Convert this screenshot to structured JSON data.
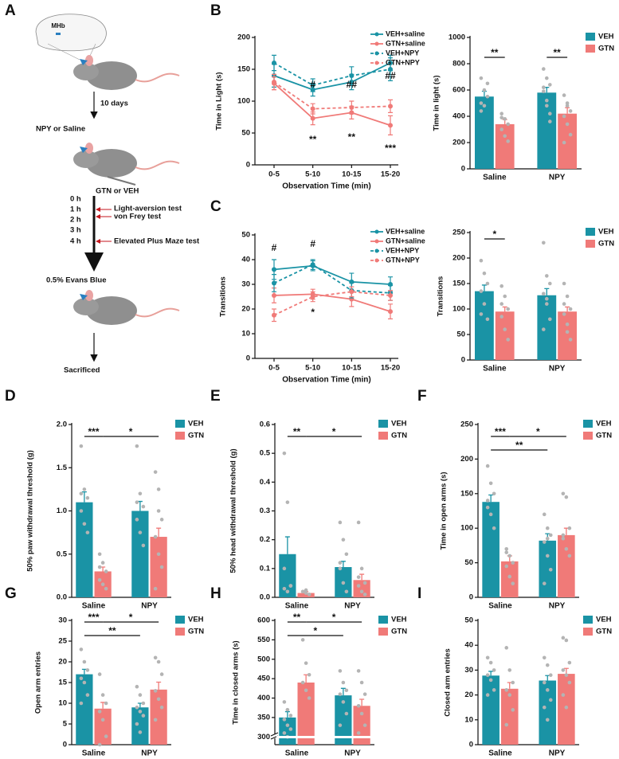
{
  "panels": [
    "A",
    "B",
    "C",
    "D",
    "E",
    "F",
    "G",
    "H",
    "I"
  ],
  "diagram": {
    "brain_label": "MHb",
    "step1": "10 days",
    "injection": "NPY or Saline",
    "treatment": "GTN or VEH",
    "times": [
      "0 h",
      "1 h",
      "2 h",
      "3 h",
      "4 h"
    ],
    "tests": [
      "Light-aversion test",
      "von Frey test",
      "Elevated Plus Maze test"
    ],
    "stain": "0.5% Evans Blue",
    "end": "Sacrificed"
  },
  "chart_data": [
    {
      "type": "line",
      "y_label": "Time in Light (s)",
      "x_label": "Observation Time (min)",
      "categories": [
        "0-5",
        "5-10",
        "10-15",
        "15-20"
      ],
      "ylim": [
        0,
        200
      ],
      "yticks": [
        0,
        50,
        100,
        150,
        200
      ],
      "series": [
        {
          "name": "VEH+saline",
          "color": "#1a93a5",
          "line_style": "solid",
          "values": [
            140,
            118,
            130,
            160
          ],
          "errors": [
            18,
            10,
            12,
            12
          ]
        },
        {
          "name": "GTN+saline",
          "color": "#f07a78",
          "line_style": "solid",
          "values": [
            128,
            73,
            82,
            62
          ],
          "errors": [
            10,
            10,
            10,
            15
          ]
        },
        {
          "name": "VEH+NPY",
          "color": "#1a93a5",
          "line_style": "dashed",
          "values": [
            160,
            125,
            140,
            150
          ],
          "errors": [
            12,
            10,
            14,
            18
          ]
        },
        {
          "name": "GTN+NPY",
          "color": "#f07a78",
          "line_style": "dashed",
          "values": [
            130,
            88,
            90,
            92
          ],
          "errors": [
            12,
            8,
            10,
            10
          ]
        }
      ],
      "annotations": [
        "#",
        "##",
        "##",
        "**",
        "**",
        "***"
      ]
    },
    {
      "type": "bar",
      "y_label": "Time in light (s)",
      "categories": [
        "Saline",
        "NPY"
      ],
      "ylim": [
        0,
        1000
      ],
      "yticks": [
        0,
        200,
        400,
        600,
        800,
        1000
      ],
      "series": [
        {
          "name": "VEH",
          "color": "#1a93a5",
          "values": [
            550,
            580
          ],
          "errors": [
            40,
            40
          ],
          "points": [
            [
              690,
              600,
              550,
              500,
              480,
              650,
              440
            ],
            [
              760,
              690,
              640,
              590,
              480,
              420,
              620,
              520,
              360
            ]
          ]
        },
        {
          "name": "GTN",
          "color": "#f07a78",
          "values": [
            340,
            420
          ],
          "errors": [
            35,
            45
          ],
          "points": [
            [
              420,
              380,
              340,
              300,
              250,
              210,
              390
            ],
            [
              560,
              480,
              440,
              400,
              340,
              260,
              200,
              500
            ]
          ]
        }
      ],
      "annotations": [
        "**",
        "**"
      ]
    },
    {
      "type": "line",
      "y_label": "Transitions",
      "x_label": "Observation Time (min)",
      "categories": [
        "0-5",
        "5-10",
        "10-15",
        "15-20"
      ],
      "ylim": [
        0,
        50
      ],
      "yticks": [
        0,
        10,
        20,
        30,
        40,
        50
      ],
      "series": [
        {
          "name": "VEH+saline",
          "color": "#1a93a5",
          "line_style": "solid",
          "values": [
            36,
            37.5,
            31,
            30
          ],
          "errors": [
            4,
            2,
            3.5,
            3
          ]
        },
        {
          "name": "GTN+saline",
          "color": "#f07a78",
          "line_style": "solid",
          "values": [
            25.5,
            26,
            24,
            19
          ],
          "errors": [
            3,
            2,
            3,
            3
          ]
        },
        {
          "name": "VEH+NPY",
          "color": "#1a93a5",
          "line_style": "dashed",
          "values": [
            30.5,
            38,
            27.5,
            26.5
          ],
          "errors": [
            3.5,
            2,
            3,
            3
          ]
        },
        {
          "name": "GTN+NPY",
          "color": "#f07a78",
          "line_style": "dashed",
          "values": [
            17.5,
            25,
            27,
            25.5
          ],
          "errors": [
            2.5,
            2,
            2,
            2
          ]
        }
      ],
      "annotations": [
        "#",
        "#",
        "*"
      ]
    },
    {
      "type": "bar",
      "y_label": "Transitions",
      "categories": [
        "Saline",
        "NPY"
      ],
      "ylim": [
        0,
        250
      ],
      "yticks": [
        0,
        50,
        100,
        150,
        200,
        250
      ],
      "series": [
        {
          "name": "VEH",
          "color": "#1a93a5",
          "values": [
            135,
            127
          ],
          "errors": [
            12,
            13
          ],
          "points": [
            [
              195,
              170,
              150,
              135,
              110,
              80,
              90
            ],
            [
              230,
              165,
              150,
              130,
              110,
              80,
              60,
              120
            ]
          ]
        },
        {
          "name": "GTN",
          "color": "#f07a78",
          "values": [
            95,
            95
          ],
          "errors": [
            9,
            9
          ],
          "points": [
            [
              145,
              125,
              100,
              85,
              60,
              40,
              110
            ],
            [
              150,
              125,
              100,
              90,
              70,
              40,
              110,
              55
            ]
          ]
        }
      ],
      "annotations": [
        "*"
      ]
    },
    {
      "type": "bar",
      "y_label": "50% paw withdrawal threshold (g)",
      "categories": [
        "Saline",
        "NPY"
      ],
      "ylim": [
        0,
        2
      ],
      "yticks": [
        {
          "value": 0,
          "label": "0.0"
        },
        0.5,
        {
          "value": 1,
          "label": "1.0"
        },
        1.5,
        {
          "value": 2,
          "label": "2.0"
        }
      ],
      "series": [
        {
          "name": "VEH",
          "color": "#1a93a5",
          "values": [
            1.1,
            1.0
          ],
          "errors": [
            0.12,
            0.11
          ],
          "points": [
            [
              1.75,
              1.25,
              1.15,
              1.0,
              0.85,
              0.75,
              1.2
            ],
            [
              1.75,
              1.2,
              1.05,
              0.9,
              0.75,
              0.6,
              1.1
            ]
          ]
        },
        {
          "name": "GTN",
          "color": "#f07a78",
          "values": [
            0.3,
            0.7
          ],
          "errors": [
            0.05,
            0.1
          ],
          "points": [
            [
              0.5,
              0.4,
              0.3,
              0.2,
              0.15,
              0.1,
              0.35
            ],
            [
              1.45,
              1.25,
              0.9,
              0.7,
              0.5,
              0.35,
              0.1,
              1.0
            ]
          ]
        }
      ],
      "annotations": [
        "***",
        "*"
      ]
    },
    {
      "type": "bar",
      "y_label": "50% head withdrawal threshold (g)",
      "categories": [
        "Saline",
        "NPY"
      ],
      "ylim": [
        0,
        0.6
      ],
      "yticks": [
        {
          "value": 0,
          "label": "0.0"
        },
        0.1,
        0.2,
        0.3,
        0.4,
        0.5,
        0.6
      ],
      "series": [
        {
          "name": "VEH",
          "color": "#1a93a5",
          "values": [
            0.15,
            0.105
          ],
          "errors": [
            0.06,
            0.02
          ],
          "points": [
            [
              0.5,
              0.33,
              0.04,
              0.03,
              0.02,
              0.04,
              0.1
            ],
            [
              0.26,
              0.2,
              0.15,
              0.1,
              0.05,
              0.02,
              0.12
            ]
          ]
        },
        {
          "name": "GTN",
          "color": "#f07a78",
          "values": [
            0.015,
            0.06
          ],
          "errors": [
            0.005,
            0.02
          ],
          "points": [
            [
              0.02,
              0.015,
              0.01,
              0.02,
              0.025,
              0.01
            ],
            [
              0.26,
              0.1,
              0.05,
              0.04,
              0.02,
              0.01,
              0.07
            ]
          ]
        }
      ],
      "annotations": [
        "**",
        "*"
      ]
    },
    {
      "type": "bar",
      "y_label": "Time in open arms (s)",
      "categories": [
        "Saline",
        "NPY"
      ],
      "ylim": [
        0,
        250
      ],
      "yticks": [
        0,
        50,
        100,
        150,
        200,
        250
      ],
      "series": [
        {
          "name": "VEH",
          "color": "#1a93a5",
          "values": [
            138,
            82
          ],
          "errors": [
            10,
            10
          ],
          "points": [
            [
              190,
              165,
              150,
              140,
              120,
              100,
              130
            ],
            [
              120,
              100,
              90,
              80,
              60,
              40,
              20,
              85
            ]
          ]
        },
        {
          "name": "GTN",
          "color": "#f07a78",
          "values": [
            52,
            90
          ],
          "errors": [
            8,
            10
          ],
          "points": [
            [
              70,
              60,
              50,
              45,
              30,
              20,
              65
            ],
            [
              150,
              145,
              100,
              90,
              70,
              60,
              85
            ]
          ]
        }
      ],
      "annotations": [
        "***",
        "*",
        "**"
      ]
    },
    {
      "type": "bar",
      "y_label": "Open arm entries",
      "categories": [
        "Saline",
        "NPY"
      ],
      "ylim": [
        0,
        30
      ],
      "yticks": [
        0,
        5,
        10,
        15,
        20,
        25,
        30
      ],
      "series": [
        {
          "name": "VEH",
          "color": "#1a93a5",
          "values": [
            17,
            9
          ],
          "errors": [
            1.2,
            1
          ],
          "points": [
            [
              23,
              20,
              18,
              16,
              15,
              12,
              10
            ],
            [
              14,
              12,
              10,
              9,
              8,
              7,
              5,
              3
            ]
          ]
        },
        {
          "name": "GTN",
          "color": "#f07a78",
          "values": [
            8.7,
            13.3
          ],
          "errors": [
            1.5,
            1.8
          ],
          "points": [
            [
              17,
              12,
              10,
              8,
              6,
              2,
              0
            ],
            [
              21,
              20,
              17,
              13,
              11,
              9,
              6
            ]
          ]
        }
      ],
      "annotations": [
        "***",
        "*",
        "**"
      ]
    },
    {
      "type": "bar",
      "y_label": "Time in closed arms (s)",
      "categories": [
        "Saline",
        "NPY"
      ],
      "ylim": [
        280,
        600
      ],
      "yticks": [
        300,
        350,
        400,
        450,
        500,
        550,
        600
      ],
      "series": [
        {
          "name": "VEH",
          "color": "#1a93a5",
          "values": [
            350,
            407
          ],
          "errors": [
            15,
            18
          ],
          "points": [
            [
              390,
              370,
              355,
              345,
              330,
              320,
              310,
              300
            ],
            [
              470,
              440,
              420,
              410,
              390,
              360,
              330
            ]
          ]
        },
        {
          "name": "GTN",
          "color": "#f07a78",
          "values": [
            440,
            380
          ],
          "errors": [
            20,
            17
          ],
          "points": [
            [
              550,
              490,
              460,
              440,
              420,
              400
            ],
            [
              470,
              440,
              410,
              380,
              360,
              330,
              310
            ]
          ]
        }
      ],
      "annotations": [
        "**",
        "*",
        "*"
      ]
    },
    {
      "type": "bar",
      "y_label": "Closed arm entries",
      "categories": [
        "Saline",
        "NPY"
      ],
      "ylim": [
        0,
        50
      ],
      "yticks": [
        0,
        10,
        20,
        30,
        40,
        50
      ],
      "series": [
        {
          "name": "VEH",
          "color": "#1a93a5",
          "values": [
            27.8,
            25.8
          ],
          "errors": [
            1.7,
            2
          ],
          "points": [
            [
              35,
              33,
              30,
              28,
              26,
              22,
              20
            ],
            [
              35,
              32,
              28,
              25,
              22,
              18,
              15,
              10
            ]
          ]
        },
        {
          "name": "GTN",
          "color": "#f07a78",
          "values": [
            22.5,
            28.5
          ],
          "errors": [
            2.5,
            2.2
          ],
          "points": [
            [
              39,
              30,
              25,
              22,
              20,
              14,
              8
            ],
            [
              43,
              42,
              33,
              30,
              28,
              25,
              20,
              15
            ]
          ]
        }
      ],
      "annotations": []
    }
  ]
}
